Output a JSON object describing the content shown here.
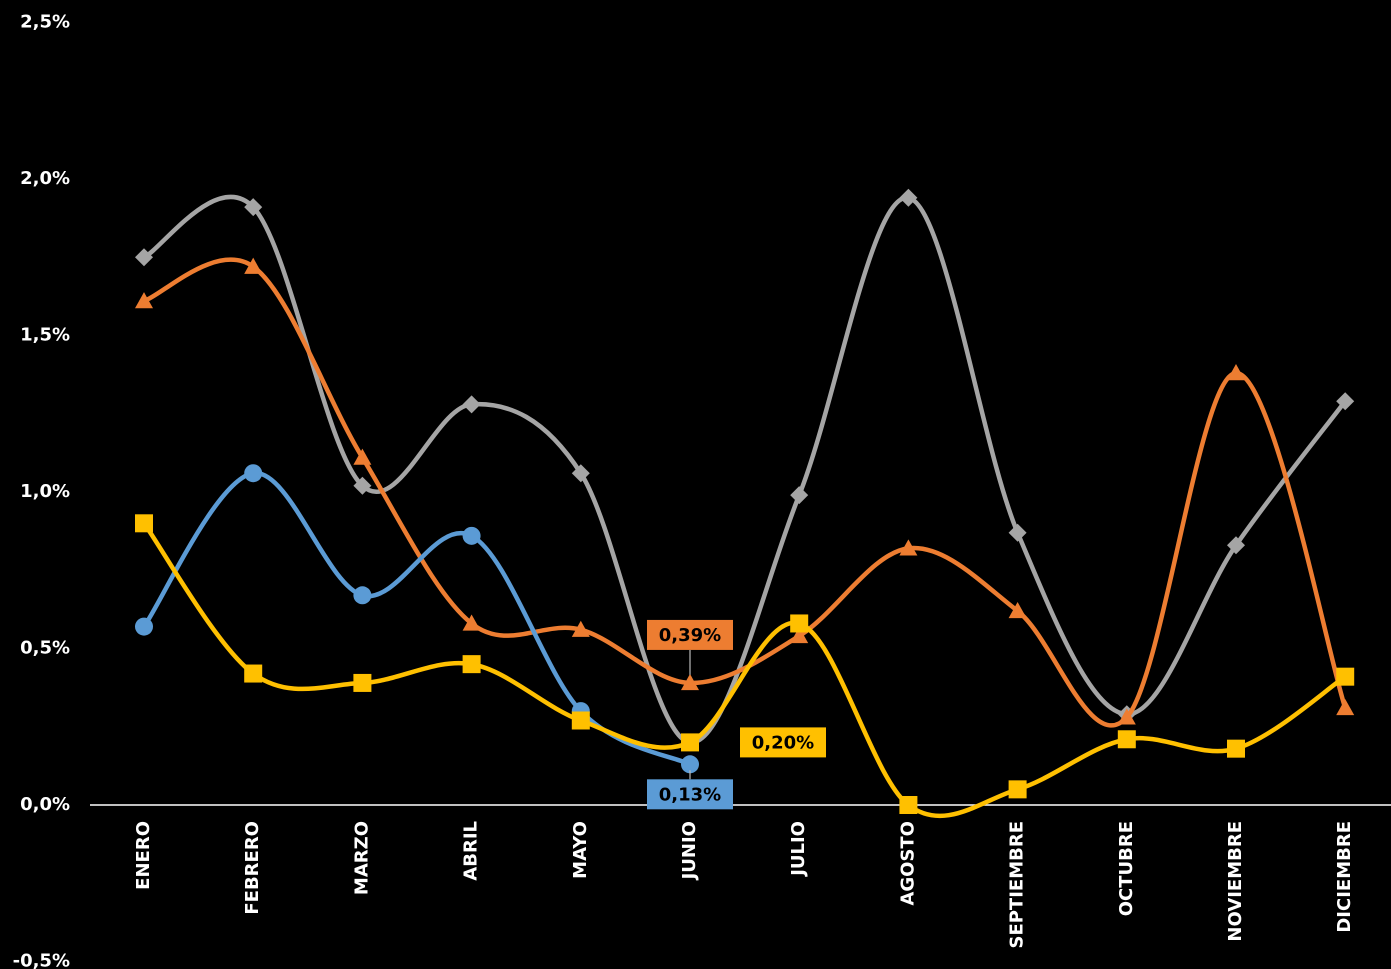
{
  "chart_data": {
    "type": "line",
    "categories": [
      "ENERO",
      "FEBRERO",
      "MARZO",
      "ABRIL",
      "MAYO",
      "JUNIO",
      "JULIO",
      "AGOSTO",
      "SEPTIEMBRE",
      "OCTUBRE",
      "NOVIEMBRE",
      "DICIEMBRE"
    ],
    "series": [
      {
        "color": "#a5a5a5",
        "marker": "diamond",
        "values": [
          1.75,
          1.91,
          1.02,
          1.28,
          1.06,
          0.2,
          0.99,
          1.94,
          0.87,
          0.29,
          0.83,
          1.29
        ]
      },
      {
        "color": "#ed7d31",
        "marker": "triangle",
        "values": [
          1.61,
          1.72,
          1.11,
          0.58,
          0.56,
          0.39,
          0.54,
          0.82,
          0.62,
          0.28,
          1.38,
          0.31
        ],
        "value_labels": [
          null,
          null,
          null,
          null,
          null,
          "0,39%",
          null,
          null,
          null,
          null,
          null,
          null
        ]
      },
      {
        "color": "#5b9bd5",
        "marker": "circle",
        "values": [
          0.57,
          1.06,
          0.67,
          0.86,
          0.3,
          0.13,
          null,
          null,
          null,
          null,
          null,
          null
        ],
        "value_labels": [
          null,
          null,
          null,
          null,
          null,
          "0,13%",
          null,
          null,
          null,
          null,
          null,
          null
        ]
      },
      {
        "color": "#ffc000",
        "marker": "square",
        "values": [
          0.9,
          0.42,
          0.39,
          0.45,
          0.27,
          0.2,
          0.58,
          0.0,
          0.05,
          0.21,
          0.18,
          0.41
        ],
        "value_labels": [
          null,
          null,
          null,
          null,
          null,
          "0,20%",
          null,
          null,
          null,
          null,
          null,
          null
        ]
      }
    ],
    "ylim": [
      -0.5,
      2.5
    ],
    "yticks": [
      {
        "value": -0.5,
        "label": "-0,5%"
      },
      {
        "value": 0,
        "label": "0,0%"
      },
      {
        "value": 0.5,
        "label": "0,5%"
      },
      {
        "value": 1,
        "label": "1,0%"
      },
      {
        "value": 1.5,
        "label": "1,5%"
      },
      {
        "value": 2,
        "label": "2,0%"
      },
      {
        "value": 2.5,
        "label": "2,5%"
      }
    ],
    "grid": false
  }
}
